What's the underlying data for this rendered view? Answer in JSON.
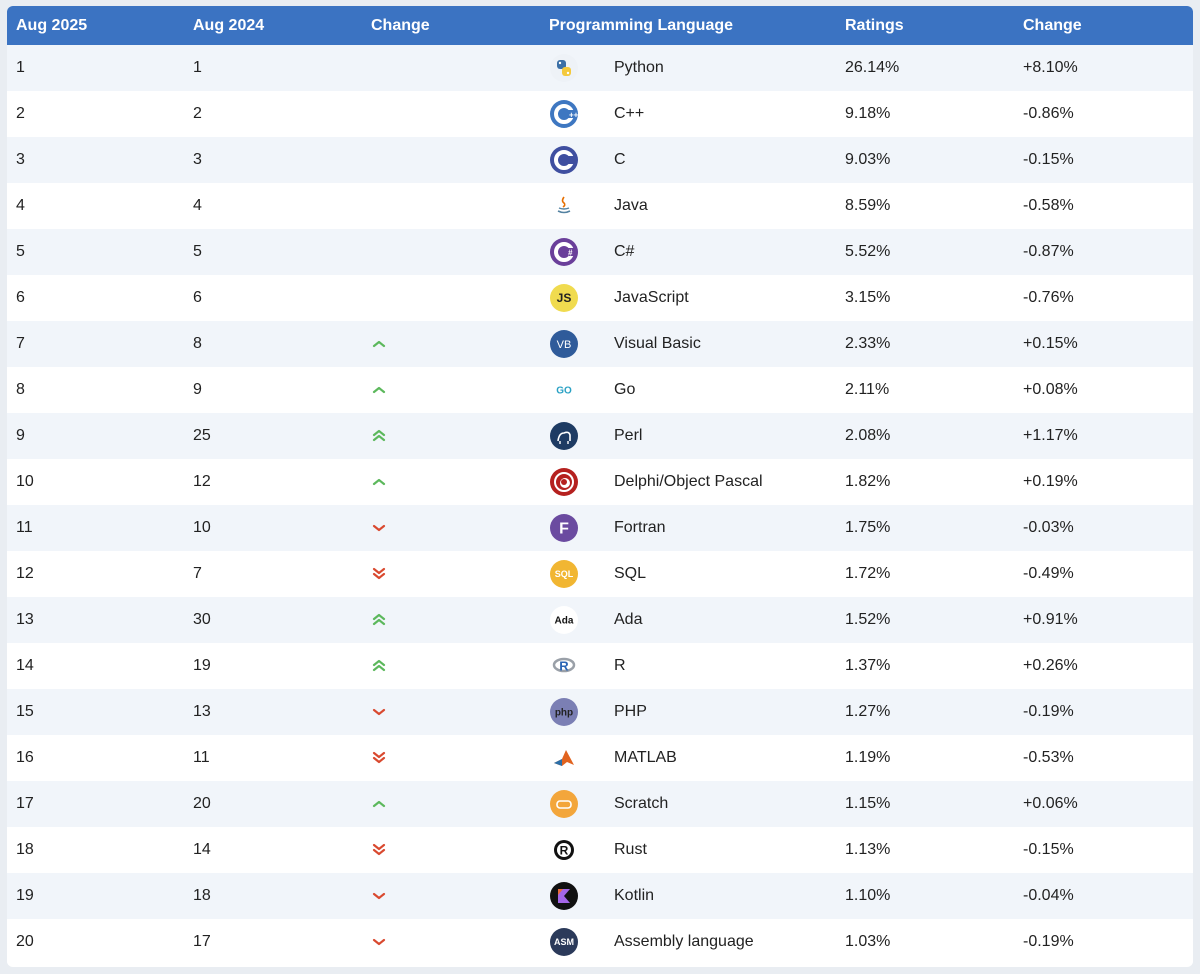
{
  "header": {
    "rank_current": "Aug 2025",
    "rank_previous": "Aug 2024",
    "change": "Change",
    "language": "Programming Language",
    "ratings": "Ratings",
    "change_ratings": "Change"
  },
  "colors": {
    "header_bg": "#3b73c2",
    "up": "#5cb85c",
    "down": "#d9492f",
    "row_alt": "#f1f5fa"
  },
  "rows": [
    {
      "rank": "1",
      "prev": "1",
      "trend": "none",
      "icon": "python-icon",
      "language": "Python",
      "rating": "26.14%",
      "change": "+8.10%"
    },
    {
      "rank": "2",
      "prev": "2",
      "trend": "none",
      "icon": "cpp-icon",
      "language": "C++",
      "rating": "9.18%",
      "change": "-0.86%"
    },
    {
      "rank": "3",
      "prev": "3",
      "trend": "none",
      "icon": "c-icon",
      "language": "C",
      "rating": "9.03%",
      "change": "-0.15%"
    },
    {
      "rank": "4",
      "prev": "4",
      "trend": "none",
      "icon": "java-icon",
      "language": "Java",
      "rating": "8.59%",
      "change": "-0.58%"
    },
    {
      "rank": "5",
      "prev": "5",
      "trend": "none",
      "icon": "csharp-icon",
      "language": "C#",
      "rating": "5.52%",
      "change": "-0.87%"
    },
    {
      "rank": "6",
      "prev": "6",
      "trend": "none",
      "icon": "javascript-icon",
      "language": "JavaScript",
      "rating": "3.15%",
      "change": "-0.76%"
    },
    {
      "rank": "7",
      "prev": "8",
      "trend": "up",
      "icon": "visual-basic-icon",
      "language": "Visual Basic",
      "rating": "2.33%",
      "change": "+0.15%"
    },
    {
      "rank": "8",
      "prev": "9",
      "trend": "up",
      "icon": "go-icon",
      "language": "Go",
      "rating": "2.11%",
      "change": "+0.08%"
    },
    {
      "rank": "9",
      "prev": "25",
      "trend": "up2",
      "icon": "perl-icon",
      "language": "Perl",
      "rating": "2.08%",
      "change": "+1.17%"
    },
    {
      "rank": "10",
      "prev": "12",
      "trend": "up",
      "icon": "delphi-icon",
      "language": "Delphi/Object Pascal",
      "rating": "1.82%",
      "change": "+0.19%"
    },
    {
      "rank": "11",
      "prev": "10",
      "trend": "down",
      "icon": "fortran-icon",
      "language": "Fortran",
      "rating": "1.75%",
      "change": "-0.03%"
    },
    {
      "rank": "12",
      "prev": "7",
      "trend": "down2",
      "icon": "sql-icon",
      "language": "SQL",
      "rating": "1.72%",
      "change": "-0.49%"
    },
    {
      "rank": "13",
      "prev": "30",
      "trend": "up2",
      "icon": "ada-icon",
      "language": "Ada",
      "rating": "1.52%",
      "change": "+0.91%"
    },
    {
      "rank": "14",
      "prev": "19",
      "trend": "up2",
      "icon": "r-icon",
      "language": "R",
      "rating": "1.37%",
      "change": "+0.26%"
    },
    {
      "rank": "15",
      "prev": "13",
      "trend": "down",
      "icon": "php-icon",
      "language": "PHP",
      "rating": "1.27%",
      "change": "-0.19%"
    },
    {
      "rank": "16",
      "prev": "11",
      "trend": "down2",
      "icon": "matlab-icon",
      "language": "MATLAB",
      "rating": "1.19%",
      "change": "-0.53%"
    },
    {
      "rank": "17",
      "prev": "20",
      "trend": "up",
      "icon": "scratch-icon",
      "language": "Scratch",
      "rating": "1.15%",
      "change": "+0.06%"
    },
    {
      "rank": "18",
      "prev": "14",
      "trend": "down2",
      "icon": "rust-icon",
      "language": "Rust",
      "rating": "1.13%",
      "change": "-0.15%"
    },
    {
      "rank": "19",
      "prev": "18",
      "trend": "down",
      "icon": "kotlin-icon",
      "language": "Kotlin",
      "rating": "1.10%",
      "change": "-0.04%"
    },
    {
      "rank": "20",
      "prev": "17",
      "trend": "down",
      "icon": "assembly-icon",
      "language": "Assembly language",
      "rating": "1.03%",
      "change": "-0.19%"
    }
  ],
  "icon_text": {
    "javascript-icon": "JS",
    "visual-basic-icon": "VB",
    "go-icon": "GO",
    "fortran-icon": "F",
    "sql-icon": "SQL",
    "ada-icon": "Ada",
    "r-icon": "R",
    "php-icon": "php",
    "assembly-icon": "ASM"
  }
}
